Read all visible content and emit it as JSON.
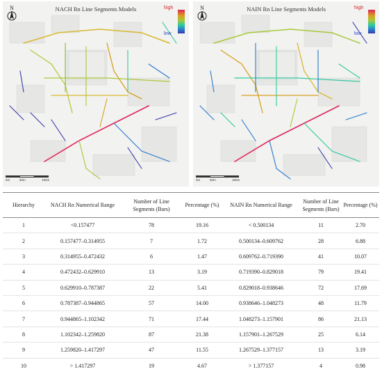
{
  "maps": [
    {
      "title": "NACH Rn Line Segments Models",
      "legend_high": "high",
      "legend_low": "low",
      "scale_labels": [
        "0m",
        "50m",
        "150m"
      ]
    },
    {
      "title": "NAIN Rn Line Segments Models",
      "legend_high": "high",
      "legend_low": "low",
      "scale_labels": [
        "0m",
        "50m",
        "150m"
      ]
    }
  ],
  "north_label": "N",
  "colors": {
    "high": "#e0245a",
    "mid_high": "#d8a020",
    "mid": "#a8c838",
    "mid_low": "#30c8a0",
    "low": "#3838a8"
  },
  "table": {
    "headers": [
      "Hierarchy",
      "NACH Rn Numerical Range",
      "Number of Line Segments (Bars)",
      "Percentage (%)",
      "NAIN Rn Numerical Range",
      "Number of Line Segments (Bars)",
      "Percentage (%)"
    ],
    "rows": [
      [
        "1",
        "<0.157477",
        "78",
        "19.16",
        "< 0.500134",
        "11",
        "2.70"
      ],
      [
        "2",
        "0.157477–0.314955",
        "7",
        "1.72",
        "0.500134–0.609762",
        "28",
        "6.88"
      ],
      [
        "3",
        "0.314955–0.472432",
        "6",
        "1.47",
        "0.609762–0.719390",
        "41",
        "10.07"
      ],
      [
        "4",
        "0.472432–0.629910",
        "13",
        "3.19",
        "0.719390–0.829018",
        "79",
        "19.41"
      ],
      [
        "5",
        "0.629910–0.787387",
        "22",
        "5.41",
        "0.829018–0.938646",
        "72",
        "17.69"
      ],
      [
        "6",
        "0.787387–0.944865",
        "57",
        "14.00",
        "0.938646–1.048273",
        "48",
        "11.79"
      ],
      [
        "7",
        "0.944865–1.102342",
        "71",
        "17.44",
        "1.048273–1.157901",
        "86",
        "21.13"
      ],
      [
        "8",
        "1.102342–1.259820",
        "87",
        "21.38",
        "1.157901–1.267529",
        "25",
        "6.14"
      ],
      [
        "9",
        "1.259820–1.417297",
        "47",
        "11.55",
        "1.267529–1.377157",
        "13",
        "3.19"
      ],
      [
        "10",
        "> 1.417297",
        "19",
        "4.67",
        "> 1.377157",
        "4",
        "0.98"
      ]
    ]
  }
}
